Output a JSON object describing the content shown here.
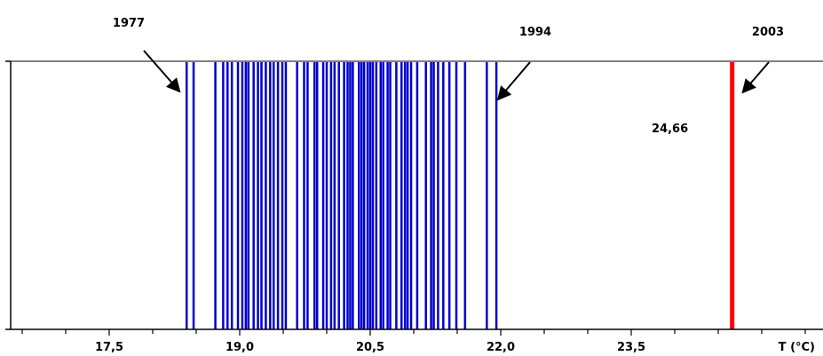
{
  "chart_data": {
    "type": "bar",
    "title": "",
    "xlabel": "T (°C)",
    "ylabel": "",
    "xlim": [
      16.0,
      25.9
    ],
    "xticks": [
      {
        "value": 17.5,
        "label": "17,5"
      },
      {
        "value": 19.0,
        "label": "19,0"
      },
      {
        "value": 20.5,
        "label": "20,5"
      },
      {
        "value": 22.0,
        "label": "22,0"
      },
      {
        "value": 23.5,
        "label": "23,5"
      }
    ],
    "series": [
      {
        "values": [
          18.39,
          18.47,
          18.72,
          18.81,
          18.86,
          18.91,
          18.98,
          19.03,
          19.07,
          19.1,
          19.16,
          19.21,
          19.25,
          19.3,
          19.35,
          19.39,
          19.44,
          19.49,
          19.53,
          19.66,
          19.74,
          19.78,
          19.86,
          19.89,
          19.96,
          20.0,
          20.05,
          20.09,
          20.14,
          20.2,
          20.24,
          20.27,
          20.3,
          20.37,
          20.4,
          20.43,
          20.47,
          20.5,
          20.53,
          20.57,
          20.62,
          20.65,
          20.7,
          20.73,
          20.8,
          20.86,
          20.9,
          20.93,
          20.97,
          21.04,
          21.14,
          21.2,
          21.23,
          21.28,
          21.34,
          21.41,
          21.49,
          21.59,
          21.84,
          21.95
        ],
        "color": "#0000cc"
      },
      {
        "values": [
          24.66
        ],
        "color": "#ff0000"
      }
    ],
    "annotations": [
      {
        "text": "1977",
        "target": 18.39
      },
      {
        "text": "1994",
        "target": 21.95
      },
      {
        "text": "2003",
        "target": 24.66
      }
    ],
    "value_label": "24,66",
    "grid": false,
    "legend": "none"
  }
}
